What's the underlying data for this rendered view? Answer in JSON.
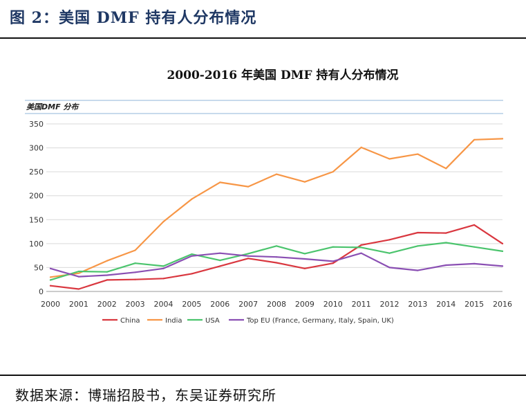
{
  "figure": {
    "header": "图 2：美国 DMF 持有人分布情况",
    "source": "数据来源：博瑞招股书，东吴证券研究所"
  },
  "chart_data": {
    "type": "line",
    "title": "2000-2016 年美国 DMF 持有人分布情况",
    "subtitle": "美国DMF 分布",
    "xlabel": "",
    "ylabel": "",
    "ylim": [
      0,
      350
    ],
    "yticks": [
      "0",
      "50",
      "100",
      "150",
      "200",
      "250",
      "300",
      "350"
    ],
    "ytick_values": [
      0,
      50,
      100,
      150,
      200,
      250,
      300,
      350
    ],
    "categories": [
      "2000",
      "2001",
      "2002",
      "2003",
      "2004",
      "2005",
      "2006",
      "2007",
      "2008",
      "2009",
      "2010",
      "2011",
      "2012",
      "2013",
      "2014",
      "2015",
      "2016"
    ],
    "grid": true,
    "legend_position": "bottom",
    "series": [
      {
        "name": "China",
        "color": "#d9373f",
        "values": [
          12,
          5,
          24,
          25,
          27,
          37,
          53,
          69,
          60,
          48,
          59,
          97,
          108,
          123,
          122,
          139,
          100
        ]
      },
      {
        "name": "India",
        "color": "#f79646",
        "values": [
          30,
          38,
          64,
          86,
          146,
          193,
          228,
          219,
          245,
          229,
          250,
          301,
          277,
          287,
          257,
          317,
          319
        ]
      },
      {
        "name": "USA",
        "color": "#4bc46d",
        "values": [
          24,
          42,
          41,
          59,
          53,
          78,
          65,
          79,
          95,
          79,
          93,
          92,
          80,
          95,
          102,
          93,
          84
        ]
      },
      {
        "name": "Top EU (France, Germany, Italy, Spain, UK)",
        "color": "#8a4fb3",
        "values": [
          48,
          31,
          34,
          40,
          48,
          74,
          80,
          74,
          72,
          68,
          63,
          80,
          50,
          44,
          55,
          58,
          53
        ]
      }
    ]
  }
}
